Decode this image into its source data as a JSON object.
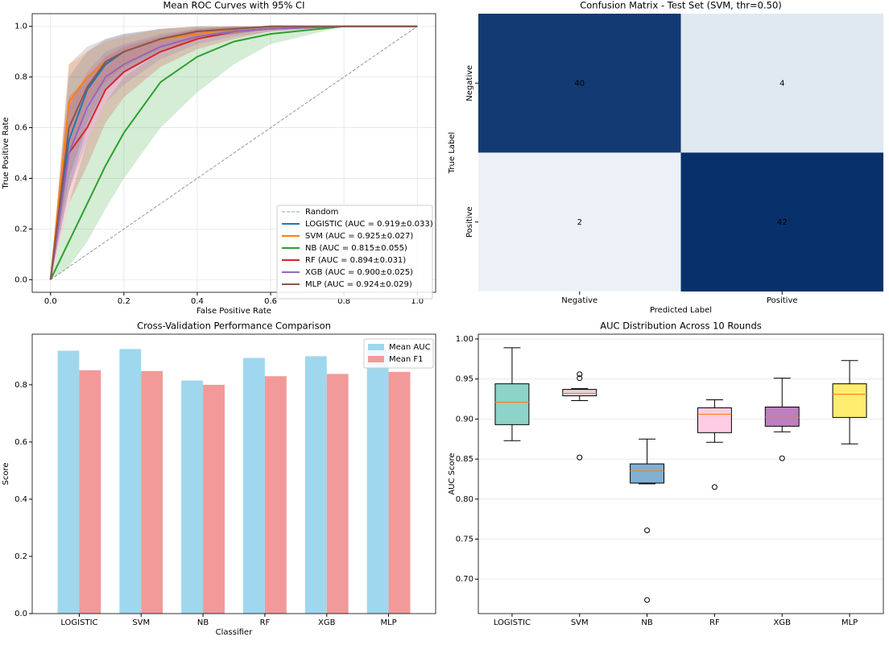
{
  "chart_data": [
    {
      "type": "line",
      "title": "Mean ROC Curves with 95% CI",
      "xlabel": "False Positive Rate",
      "ylabel": "True Positive Rate",
      "xlim": [
        -0.05,
        1.05
      ],
      "ylim": [
        -0.05,
        1.05
      ],
      "xticks": [
        {
          "value": 0,
          "label": "0.0"
        },
        0.2,
        0.4,
        0.6,
        0.8,
        {
          "value": 1,
          "label": "1.0"
        }
      ],
      "yticks": [
        {
          "value": 0,
          "label": "0.0"
        },
        0.2,
        0.4,
        0.6,
        0.8,
        {
          "value": 1,
          "label": "1.0"
        }
      ],
      "grid": true,
      "legend": "lower right",
      "x": [
        0,
        0.05,
        0.1,
        0.15,
        0.2,
        0.3,
        0.4,
        0.5,
        0.6,
        0.8,
        1.0
      ],
      "series": [
        {
          "name": "Random",
          "color": "#808080",
          "linestyle": "dashed",
          "values": [
            0,
            0.05,
            0.1,
            0.15,
            0.2,
            0.3,
            0.4,
            0.5,
            0.6,
            0.8,
            1.0
          ]
        },
        {
          "name": "LOGISTIC (AUC = 0.919±0.033)",
          "color": "#1f77b4",
          "values": [
            0,
            0.55,
            0.75,
            0.85,
            0.9,
            0.95,
            0.98,
            0.99,
            1,
            1,
            1
          ],
          "lower": [
            0,
            0.35,
            0.6,
            0.75,
            0.82,
            0.9,
            0.95,
            0.97,
            0.99,
            1,
            1
          ],
          "upper": [
            0,
            0.8,
            0.9,
            0.95,
            0.97,
            0.99,
            1,
            1,
            1,
            1,
            1
          ]
        },
        {
          "name": "SVM (AUC = 0.925±0.027)",
          "color": "#ff7f0e",
          "values": [
            0,
            0.7,
            0.8,
            0.86,
            0.9,
            0.95,
            0.97,
            0.99,
            1,
            1,
            1
          ],
          "lower": [
            0,
            0.5,
            0.7,
            0.78,
            0.84,
            0.91,
            0.95,
            0.97,
            0.99,
            1,
            1
          ],
          "upper": [
            0,
            0.85,
            0.9,
            0.94,
            0.96,
            0.99,
            1,
            1,
            1,
            1,
            1
          ]
        },
        {
          "name": "NB (AUC = 0.815±0.055)",
          "color": "#2ca02c",
          "values": [
            0,
            0.15,
            0.3,
            0.45,
            0.58,
            0.78,
            0.88,
            0.94,
            0.97,
            1,
            1
          ],
          "lower": [
            0,
            0.05,
            0.15,
            0.28,
            0.4,
            0.6,
            0.74,
            0.85,
            0.93,
            1,
            1
          ],
          "upper": [
            0,
            0.3,
            0.55,
            0.7,
            0.8,
            0.9,
            0.96,
            0.99,
            1,
            1,
            1
          ]
        },
        {
          "name": "RF (AUC = 0.894±0.031)",
          "color": "#d62728",
          "values": [
            0,
            0.5,
            0.6,
            0.75,
            0.82,
            0.9,
            0.95,
            0.98,
            0.99,
            1,
            1
          ],
          "lower": [
            0,
            0.3,
            0.45,
            0.62,
            0.72,
            0.84,
            0.91,
            0.95,
            0.98,
            1,
            1
          ],
          "upper": [
            0,
            0.72,
            0.8,
            0.88,
            0.92,
            0.96,
            0.99,
            1,
            1,
            1,
            1
          ]
        },
        {
          "name": "XGB (AUC = 0.900±0.025)",
          "color": "#9467bd",
          "values": [
            0,
            0.5,
            0.68,
            0.8,
            0.85,
            0.92,
            0.96,
            0.98,
            0.99,
            1,
            1
          ],
          "lower": [
            0,
            0.35,
            0.55,
            0.7,
            0.77,
            0.87,
            0.93,
            0.96,
            0.98,
            1,
            1
          ],
          "upper": [
            0,
            0.68,
            0.82,
            0.9,
            0.93,
            0.97,
            0.99,
            1,
            1,
            1,
            1
          ]
        },
        {
          "name": "MLP (AUC = 0.924±0.029)",
          "color": "#8c564b",
          "values": [
            0,
            0.6,
            0.76,
            0.86,
            0.9,
            0.95,
            0.98,
            0.99,
            1,
            1,
            1
          ],
          "lower": [
            0,
            0.4,
            0.62,
            0.76,
            0.82,
            0.9,
            0.95,
            0.97,
            0.99,
            1,
            1
          ],
          "upper": [
            0,
            0.85,
            0.92,
            0.95,
            0.97,
            0.99,
            1,
            1,
            1,
            1,
            1
          ]
        }
      ]
    },
    {
      "type": "heatmap",
      "title": "Confusion Matrix - Test Set (SVM, thr=0.50)",
      "xlabel": "Predicted Label",
      "ylabel": "True Label",
      "x_categories": [
        "Negative",
        "Positive"
      ],
      "y_categories": [
        "Negative",
        "Positive"
      ],
      "values": [
        [
          40,
          4
        ],
        [
          2,
          42
        ]
      ],
      "colormap": [
        "#f7fbff",
        "#08306b"
      ]
    },
    {
      "type": "bar",
      "title": "Cross-Validation Performance Comparison",
      "xlabel": "Classifier",
      "ylabel": "Score",
      "categories": [
        "LOGISTIC",
        "SVM",
        "NB",
        "RF",
        "XGB",
        "MLP"
      ],
      "ylim": [
        0,
        0.977
      ],
      "yticks": [
        {
          "value": 0,
          "label": "0.0"
        },
        0.2,
        0.4,
        0.6,
        0.8
      ],
      "legend": "upper right",
      "series": [
        {
          "name": "Mean AUC",
          "color": "#9fd7ee",
          "values": [
            0.919,
            0.925,
            0.815,
            0.894,
            0.9,
            0.924
          ]
        },
        {
          "name": "Mean F1",
          "color": "#f29a9a",
          "values": [
            0.851,
            0.848,
            0.8,
            0.83,
            0.838,
            0.845
          ]
        }
      ]
    },
    {
      "type": "box",
      "title": "AUC Distribution Across 10 Rounds",
      "ylabel": "AUC Score",
      "categories": [
        "LOGISTIC",
        "SVM",
        "NB",
        "RF",
        "XGB",
        "MLP"
      ],
      "ylim": [
        0.657,
        1.006
      ],
      "yticks": [
        {
          "value": 0.7,
          "label": "0.70"
        },
        0.75,
        {
          "value": 0.8,
          "label": "0.80"
        },
        0.85,
        {
          "value": 0.9,
          "label": "0.90"
        },
        0.95,
        {
          "value": 1,
          "label": "1.00"
        }
      ],
      "grid": true,
      "colors": [
        "#8dd3c7",
        "#e6d3dc",
        "#80b1d3",
        "#fccde5",
        "#bc80bd",
        "#ffed6f"
      ],
      "median_color": "#ff7f0e",
      "boxes": [
        {
          "whislo": 0.873,
          "q1": 0.893,
          "med": 0.921,
          "q3": 0.944,
          "whishi": 0.989,
          "fliers": []
        },
        {
          "whislo": 0.923,
          "q1": 0.929,
          "med": 0.932,
          "q3": 0.937,
          "whishi": 0.938,
          "fliers": [
            0.956,
            0.951,
            0.852
          ]
        },
        {
          "whislo": 0.819,
          "q1": 0.82,
          "med": 0.835,
          "q3": 0.844,
          "whishi": 0.875,
          "fliers": [
            0.761,
            0.674
          ]
        },
        {
          "whislo": 0.871,
          "q1": 0.883,
          "med": 0.906,
          "q3": 0.914,
          "whishi": 0.924,
          "fliers": [
            0.815
          ]
        },
        {
          "whislo": 0.884,
          "q1": 0.891,
          "med": 0.902,
          "q3": 0.915,
          "whishi": 0.951,
          "fliers": [
            0.851
          ]
        },
        {
          "whislo": 0.869,
          "q1": 0.902,
          "med": 0.931,
          "q3": 0.944,
          "whishi": 0.973,
          "fliers": []
        }
      ]
    }
  ]
}
